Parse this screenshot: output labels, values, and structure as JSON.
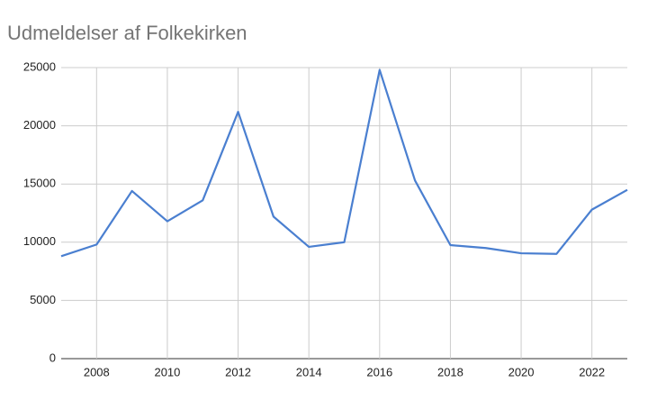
{
  "chart_data": {
    "type": "line",
    "title": "Udmeldelser af Folkekirken",
    "x": [
      2007,
      2008,
      2009,
      2010,
      2011,
      2012,
      2013,
      2014,
      2015,
      2016,
      2017,
      2018,
      2019,
      2020,
      2021,
      2022,
      2023
    ],
    "series": [
      {
        "name": "Udmeldelser",
        "color": "#4a7fd0",
        "values": [
          8800,
          9800,
          14400,
          11800,
          13600,
          21200,
          12200,
          9600,
          10000,
          24800,
          15300,
          9750,
          9500,
          9050,
          9000,
          12800,
          14500
        ]
      }
    ],
    "xlim": [
      2007,
      2023
    ],
    "xticks": [
      2008,
      2010,
      2012,
      2014,
      2016,
      2018,
      2020,
      2022
    ],
    "ylim": [
      0,
      25000
    ],
    "yticks": [
      0,
      5000,
      10000,
      15000,
      20000,
      25000
    ],
    "grid": true
  }
}
